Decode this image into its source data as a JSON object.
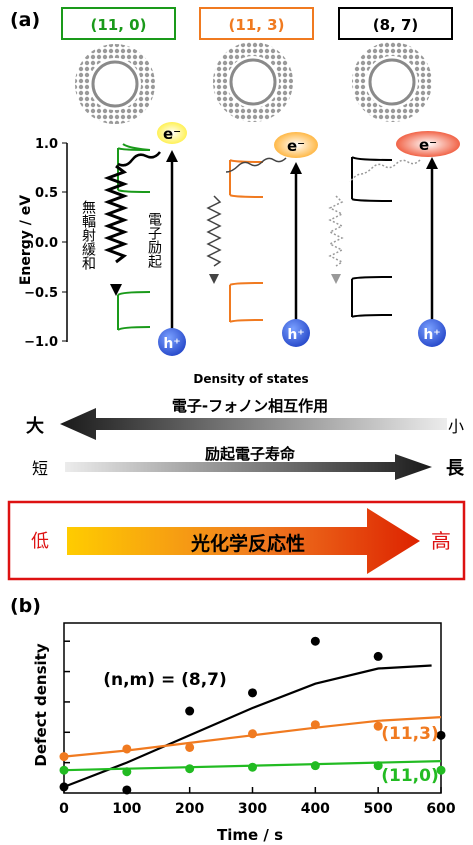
{
  "panel_a": {
    "label": "(a)",
    "nanotubes": [
      {
        "name": "(11, 0)",
        "color": "#1a9a1a"
      },
      {
        "name": "(11, 3)",
        "color": "#f07a20"
      },
      {
        "name": "(8, 7)",
        "color": "#000000"
      }
    ],
    "y_axis_label": "Energy / eV",
    "y_ticks": [
      "1.0",
      "0.5",
      "0.0",
      "−0.5",
      "−1.0"
    ],
    "x_axis_label": "Density of states",
    "electron_label": "e⁻",
    "hole_label": "h⁺",
    "nonradiative_label": "無輻射緩和",
    "excitation_label": "電子励起"
  },
  "arrows": {
    "coupling_label": "電子-フォノン相互作用",
    "coupling_big": "大",
    "coupling_small": "小",
    "lifetime_label": "励起電子寿命",
    "lifetime_short": "短",
    "lifetime_long": "長",
    "reactivity_label": "光化学反応性",
    "reactivity_low": "低",
    "reactivity_high": "高"
  },
  "chart_data": {
    "type": "scatter",
    "panel_label": "(b)",
    "xlabel": "Time / s",
    "ylabel": "Defect density",
    "xlim": [
      0,
      600
    ],
    "x_ticks": [
      0,
      100,
      200,
      300,
      400,
      500,
      600
    ],
    "annotation": "(n,m) = (8,7)",
    "series": [
      {
        "name": "(8,7)",
        "color": "#000000",
        "points": [
          [
            0,
            0.2
          ],
          [
            100,
            0.1
          ],
          [
            200,
            2.7
          ],
          [
            300,
            3.3
          ],
          [
            400,
            5.0
          ],
          [
            500,
            4.5
          ],
          [
            600,
            1.9
          ]
        ],
        "fit": [
          [
            0,
            0.2
          ],
          [
            100,
            1.0
          ],
          [
            200,
            1.9
          ],
          [
            300,
            2.8
          ],
          [
            400,
            3.6
          ],
          [
            500,
            4.1
          ],
          [
            585,
            4.2
          ]
        ]
      },
      {
        "name": "(11,3)",
        "color": "#f07a20",
        "points": [
          [
            0,
            1.2
          ],
          [
            100,
            1.45
          ],
          [
            200,
            1.5
          ],
          [
            300,
            1.95
          ],
          [
            400,
            2.25
          ],
          [
            500,
            2.2
          ]
        ],
        "fit": [
          [
            0,
            1.2
          ],
          [
            100,
            1.4
          ],
          [
            200,
            1.65
          ],
          [
            300,
            1.9
          ],
          [
            400,
            2.15
          ],
          [
            500,
            2.38
          ],
          [
            600,
            2.5
          ]
        ]
      },
      {
        "name": "(11,0)",
        "color": "#22bb22",
        "points": [
          [
            0,
            0.75
          ],
          [
            100,
            0.7
          ],
          [
            200,
            0.8
          ],
          [
            300,
            0.85
          ],
          [
            400,
            0.9
          ],
          [
            500,
            0.9
          ],
          [
            600,
            0.75
          ]
        ],
        "fit": [
          [
            0,
            0.75
          ],
          [
            600,
            1.05
          ]
        ]
      }
    ]
  }
}
